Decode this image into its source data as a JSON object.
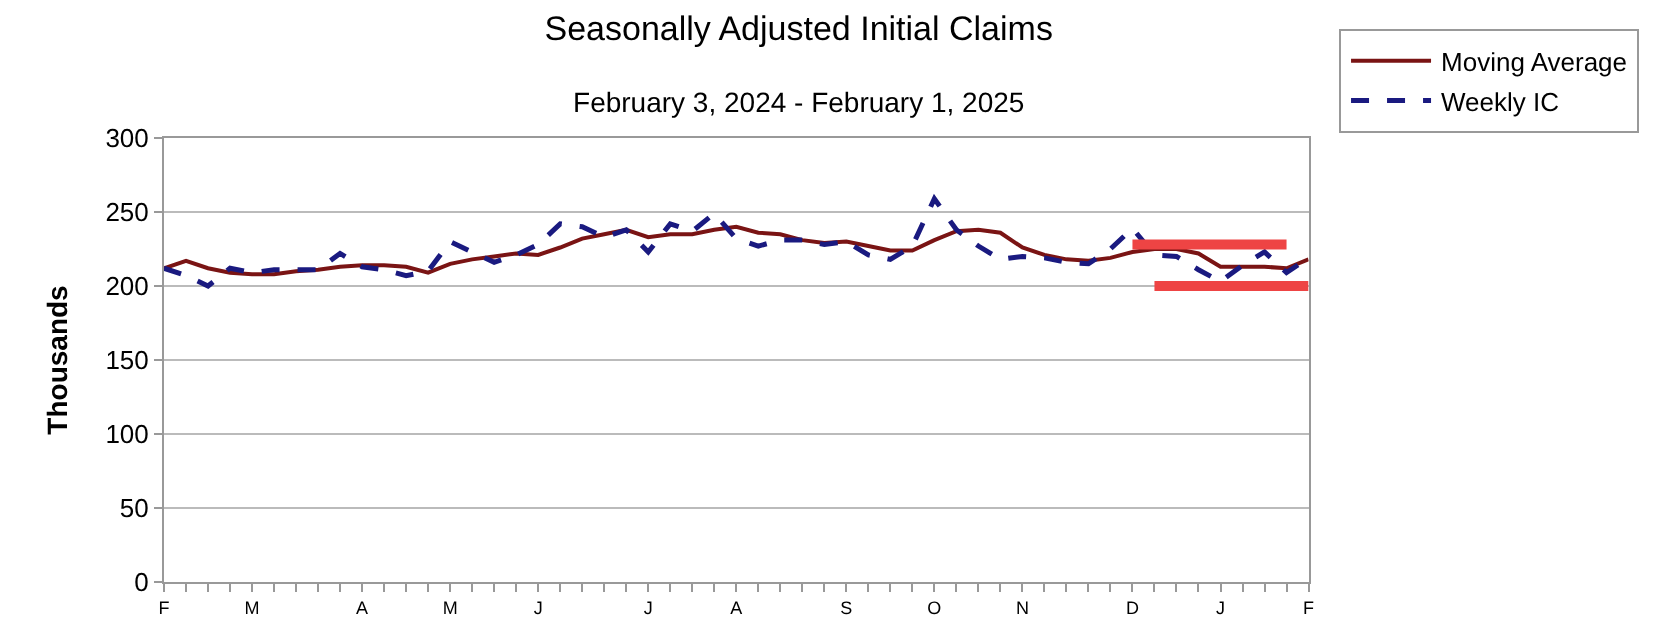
{
  "chart_data": {
    "type": "line",
    "title": "Seasonally Adjusted Initial Claims",
    "subtitle": "February 3, 2024 - February 1, 2025",
    "ylabel": "Thousands",
    "categories": [
      "F",
      null,
      null,
      null,
      "M",
      null,
      null,
      null,
      null,
      "A",
      null,
      null,
      null,
      "M",
      null,
      null,
      null,
      "J",
      null,
      null,
      null,
      null,
      "J",
      null,
      null,
      null,
      "A",
      null,
      null,
      null,
      null,
      "S",
      null,
      null,
      null,
      "O",
      null,
      null,
      null,
      "N",
      null,
      null,
      null,
      null,
      "D",
      null,
      null,
      null,
      "J",
      null,
      null,
      null,
      "F"
    ],
    "series": [
      {
        "name": "Moving Average",
        "color": "#7a1414",
        "line_style": "solid",
        "values": [
          212,
          217,
          212,
          209,
          208,
          208,
          210,
          211,
          213,
          214,
          214,
          213,
          209,
          215,
          218,
          220,
          222,
          221,
          226,
          232,
          235,
          238,
          233,
          235,
          235,
          238,
          240,
          236,
          235,
          231,
          229,
          230,
          227,
          224,
          224,
          231,
          237,
          238,
          236,
          226,
          221,
          218,
          217,
          219,
          223,
          225,
          225,
          222,
          213,
          213,
          213,
          212,
          218
        ]
      },
      {
        "name": "Weekly IC",
        "color": "#1a1a80",
        "line_style": "dashed",
        "values": [
          212,
          207,
          200,
          212,
          209,
          211,
          211,
          211,
          222,
          213,
          211,
          207,
          210,
          230,
          223,
          216,
          221,
          228,
          242,
          240,
          233,
          238,
          223,
          242,
          237,
          249,
          232,
          227,
          231,
          231,
          228,
          230,
          221,
          218,
          227,
          259,
          238,
          227,
          218,
          220,
          219,
          216,
          215,
          225,
          239,
          221,
          220,
          211,
          203,
          214,
          223,
          209,
          219
        ]
      },
      {
        "color": "#ee4444",
        "line_style": "solid",
        "values": [
          null,
          null,
          null,
          null,
          null,
          null,
          null,
          null,
          null,
          null,
          null,
          null,
          null,
          null,
          null,
          null,
          null,
          null,
          null,
          null,
          null,
          null,
          null,
          null,
          null,
          null,
          null,
          null,
          null,
          null,
          null,
          null,
          null,
          null,
          null,
          null,
          null,
          null,
          null,
          null,
          null,
          null,
          null,
          null,
          228,
          228,
          228,
          228,
          228,
          228,
          228,
          228,
          null
        ]
      },
      {
        "color": "#ee4444",
        "line_style": "solid",
        "values": [
          null,
          null,
          null,
          null,
          null,
          null,
          null,
          null,
          null,
          null,
          null,
          null,
          null,
          null,
          null,
          null,
          null,
          null,
          null,
          null,
          null,
          null,
          null,
          null,
          null,
          null,
          null,
          null,
          null,
          null,
          null,
          null,
          null,
          null,
          null,
          null,
          null,
          null,
          null,
          null,
          null,
          null,
          null,
          null,
          null,
          200,
          200,
          200,
          200,
          200,
          200,
          200,
          200
        ]
      }
    ],
    "ylim": [
      0,
      300
    ],
    "yticks": [
      0,
      50,
      100,
      150,
      200,
      250,
      300
    ],
    "grid": "y",
    "legend": "top right",
    "marker": "none"
  }
}
